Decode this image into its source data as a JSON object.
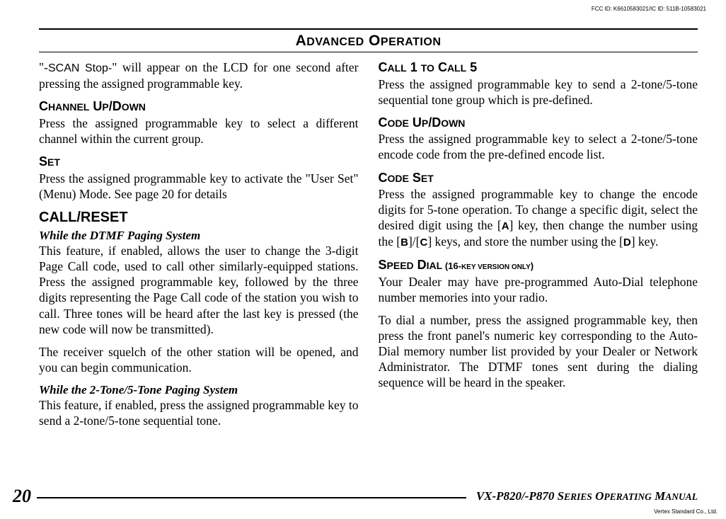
{
  "meta": {
    "fcc": "FCC ID: K6610583021/IC ID: 511B-10583021",
    "vertex": "Vertex Standard Co., Ltd."
  },
  "header": {
    "title_main": "A",
    "title_sc1": "DVANCED",
    "title_space": " O",
    "title_sc2": "PERATION"
  },
  "left": {
    "p1_pre": "\"-",
    "p1_lcd": "SCAN Stop-",
    "p1_post": "\" will appear on the LCD for one second after pressing the assigned programmable key.",
    "h_channel_a": "C",
    "h_channel_b": "HANNEL",
    "h_channel_c": " U",
    "h_channel_d": "P",
    "h_channel_e": "/D",
    "h_channel_f": "OWN",
    "p_channel": "Press the assigned programmable key to select a different channel within the current group.",
    "h_set_a": "S",
    "h_set_b": "ET",
    "p_set": "Press the assigned programmable key to activate the \"User Set\" (Menu) Mode. See page 20 for details",
    "h_callreset": "CALL/RESET",
    "sub_dtmf": "While the DTMF Paging System",
    "p_dtmf1": "This feature, if enabled, allows the user to change the 3-digit Page Call code, used to call other similarly-equipped stations. Press the assigned programmable key, followed by the three digits representing the Page Call code of the station you wish to call. Three tones will be heard after the last key is pressed (the new code will now be transmitted).",
    "p_dtmf2": "The receiver squelch of the other station will be opened, and you can begin communication.",
    "sub_25": "While the 2-Tone/5-Tone Paging System",
    "p_25": "This feature, if enabled, press the assigned programmable key to send a 2-tone/5-tone sequential tone."
  },
  "right": {
    "h_call15_a": "C",
    "h_call15_b": "ALL",
    "h_call15_c": " 1 ",
    "h_call15_d": "TO",
    "h_call15_e": " C",
    "h_call15_f": "ALL",
    "h_call15_g": " 5",
    "p_call15": "Press the assigned programmable key to send a 2-tone/5-tone sequential tone group which is pre-defined.",
    "h_codeud_a": "C",
    "h_codeud_b": "ODE",
    "h_codeud_c": " U",
    "h_codeud_d": "P",
    "h_codeud_e": "/D",
    "h_codeud_f": "OWN",
    "p_codeud": "Press the assigned programmable key to select a 2-tone/5-tone encode code from the pre-defined encode list.",
    "h_codeset_a": "C",
    "h_codeset_b": "ODE",
    "h_codeset_c": " S",
    "h_codeset_d": "ET",
    "p_codeset_pre": "Press the assigned programmable key to change the encode digits for 5-tone operation. To change a specific digit, select the desired digit using the [",
    "key_a": "A",
    "p_codeset_mid1": "] key, then change the number using the [",
    "key_b": "B",
    "p_codeset_mid2": "]/[",
    "key_c": "C",
    "p_codeset_mid3": "] keys, and store the number using the [",
    "key_d": "D",
    "p_codeset_end": "] key.",
    "h_speed_a": "S",
    "h_speed_b": "PEED",
    "h_speed_c": " D",
    "h_speed_d": "IAL",
    "h_speed_ver_open": " (",
    "h_speed_ver_a": "16-",
    "h_speed_ver_b": "KEY VERSION ONLY",
    "h_speed_ver_close": ")",
    "p_speed1": "Your Dealer may have pre-programmed Auto-Dial telephone number memories into your radio.",
    "p_speed2": "To dial a number, press the assigned programmable key, then press the front panel's numeric key corresponding to the Auto-Dial memory number list provided by your Dealer or Network Administrator. The DTMF tones sent during the dialing sequence will be heard in the speaker."
  },
  "footer": {
    "page_number": "20",
    "manual_a": "VX-P820/-P870 S",
    "manual_b": "ERIES",
    "manual_c": " O",
    "manual_d": "PERATING",
    "manual_e": " M",
    "manual_f": "ANUAL"
  }
}
